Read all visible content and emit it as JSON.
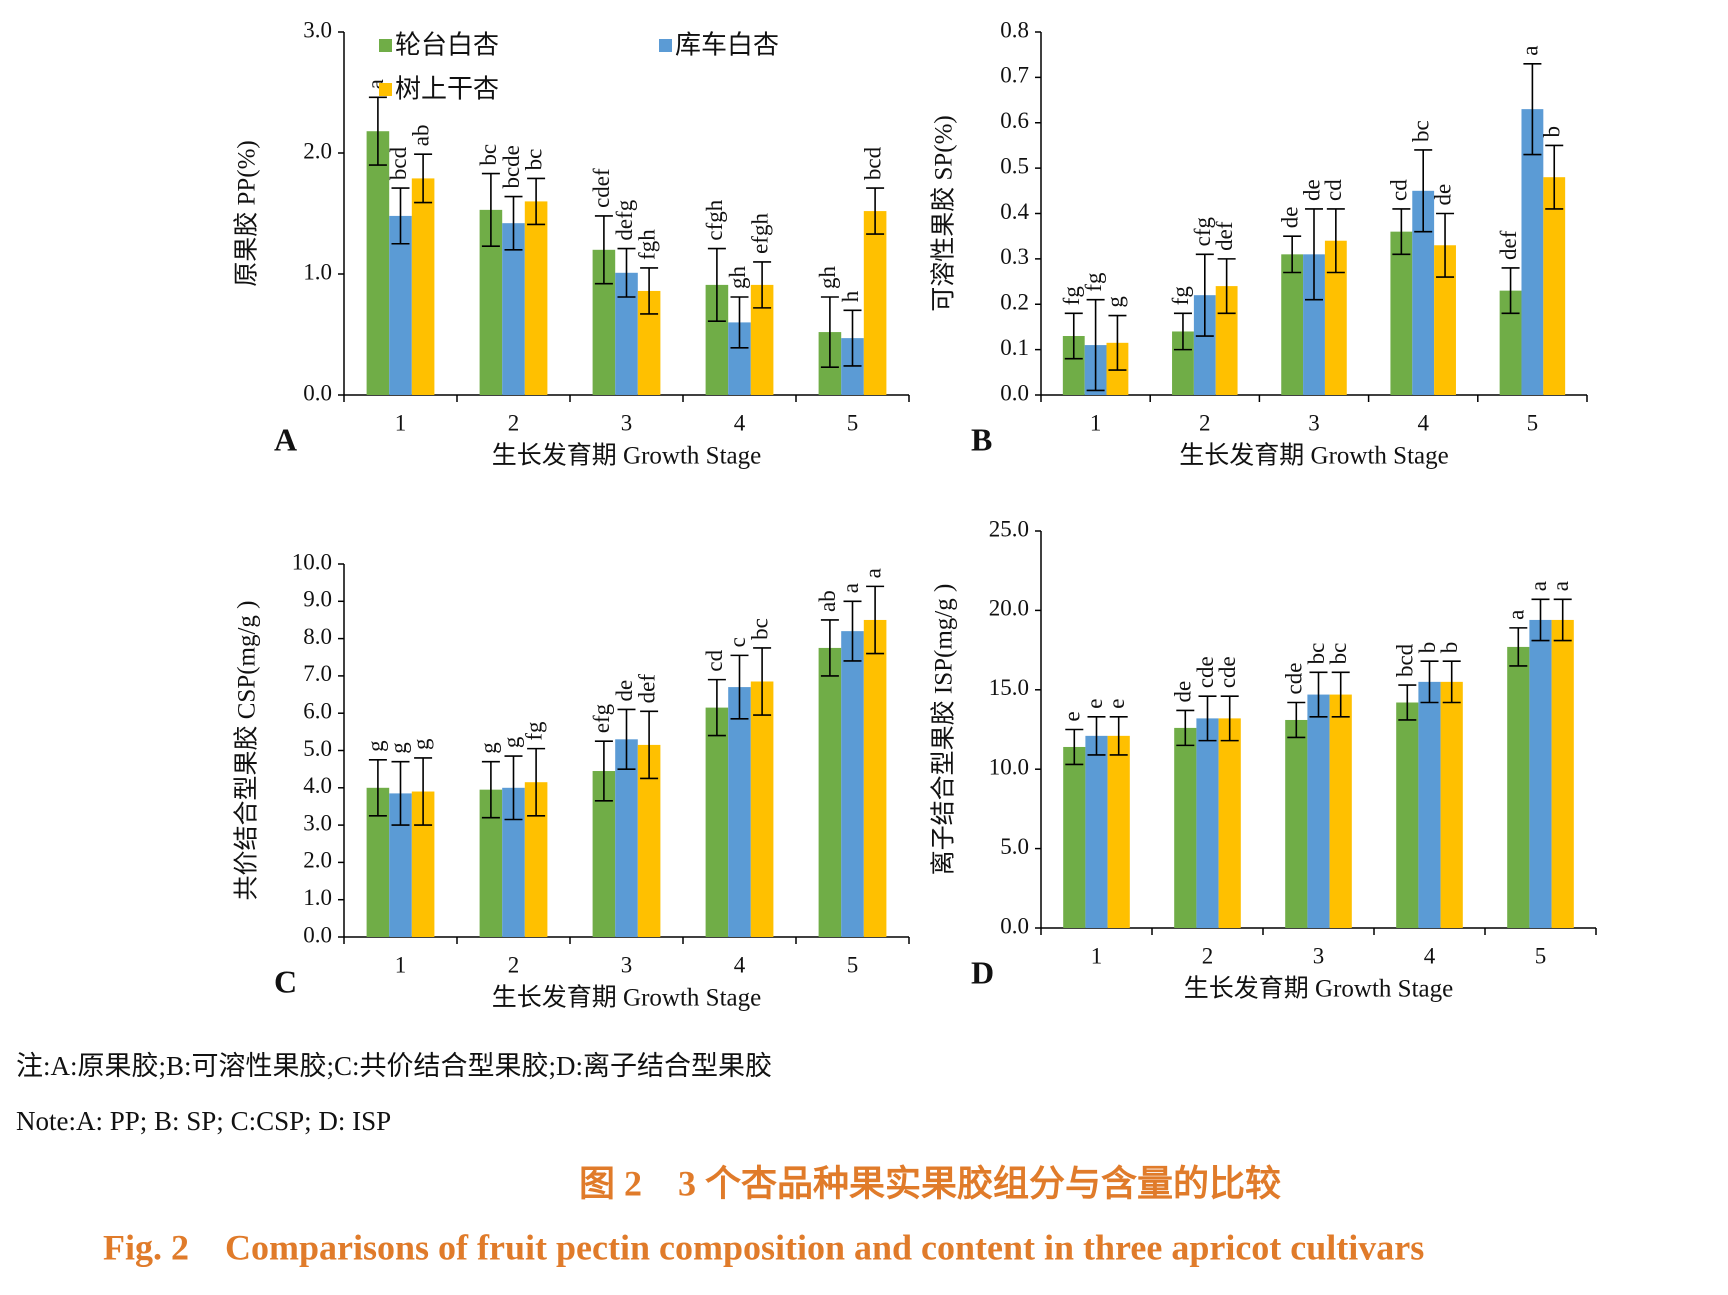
{
  "chart_data": [
    {
      "type": "bar",
      "panel": "A",
      "y_label": "原果胶 PP(%)",
      "x_label": "生长发育期 Growth Stage",
      "categories": [
        "1",
        "2",
        "3",
        "4",
        "5"
      ],
      "ylim": [
        0,
        3
      ],
      "yticks": [
        {
          "value": 0,
          "label": "0.0"
        },
        {
          "value": 1,
          "label": "1.0"
        },
        {
          "value": 2,
          "label": "2.0"
        },
        {
          "value": 3,
          "label": "3.0"
        }
      ],
      "series": [
        {
          "name": "轮台白杏",
          "color": "#70ad47",
          "values": [
            2.18,
            1.53,
            1.2,
            0.91,
            0.52
          ],
          "errors": [
            0.28,
            0.3,
            0.28,
            0.3,
            0.29
          ],
          "letters": [
            "a",
            "bc",
            "cdef",
            "cfgh",
            "gh"
          ]
        },
        {
          "name": "库车白杏",
          "color": "#5b9bd5",
          "values": [
            1.48,
            1.42,
            1.01,
            0.6,
            0.47
          ],
          "errors": [
            0.23,
            0.22,
            0.2,
            0.21,
            0.23
          ],
          "letters": [
            "bcd",
            "bcde",
            "defg",
            "gh",
            "h"
          ]
        },
        {
          "name": "树上干杏",
          "color": "#ffc000",
          "values": [
            1.79,
            1.6,
            0.86,
            0.91,
            1.52
          ],
          "errors": [
            0.2,
            0.19,
            0.19,
            0.19,
            0.19
          ],
          "letters": [
            "ab",
            "bc",
            "fgh",
            "efgh",
            "bcd"
          ]
        }
      ]
    },
    {
      "type": "bar",
      "panel": "B",
      "y_label": "可溶性果胶 SP(%)",
      "x_label": "生长发育期 Growth Stage",
      "categories": [
        "1",
        "2",
        "3",
        "4",
        "5"
      ],
      "ylim": [
        0,
        0.8
      ],
      "yticks": [
        {
          "value": 0,
          "label": "0.0"
        },
        0.1,
        0.2,
        0.3,
        0.4,
        0.5,
        0.6,
        0.7,
        0.8
      ],
      "series": [
        {
          "color": "#70ad47",
          "values": [
            0.13,
            0.14,
            0.31,
            0.36,
            0.23
          ],
          "errors": [
            0.05,
            0.04,
            0.04,
            0.05,
            0.05
          ],
          "letters": [
            "fg",
            "fg",
            "de",
            "cd",
            "def"
          ]
        },
        {
          "color": "#5b9bd5",
          "values": [
            0.11,
            0.22,
            0.31,
            0.45,
            0.63
          ],
          "errors": [
            0.1,
            0.09,
            0.1,
            0.09,
            0.1
          ],
          "letters": [
            "fg",
            "cfg",
            "de",
            "bc",
            "a"
          ]
        },
        {
          "color": "#ffc000",
          "values": [
            0.115,
            0.24,
            0.34,
            0.33,
            0.48
          ],
          "errors": [
            0.06,
            0.06,
            0.07,
            0.07,
            0.07
          ],
          "letters": [
            "g",
            "def",
            "cd",
            "de",
            "b"
          ]
        }
      ]
    },
    {
      "type": "bar",
      "panel": "C",
      "y_label": "共价结合型果胶 CSP(mg/g )",
      "x_label": "生长发育期 Growth Stage",
      "categories": [
        "1",
        "2",
        "3",
        "4",
        "5"
      ],
      "ylim": [
        0,
        10
      ],
      "yticks": [
        {
          "value": 0,
          "label": "0.0"
        },
        {
          "value": 1,
          "label": "1.0"
        },
        {
          "value": 2,
          "label": "2.0"
        },
        {
          "value": 3,
          "label": "3.0"
        },
        {
          "value": 4,
          "label": "4.0"
        },
        {
          "value": 5,
          "label": "5.0"
        },
        {
          "value": 6,
          "label": "6.0"
        },
        {
          "value": 7,
          "label": "7.0"
        },
        {
          "value": 8,
          "label": "8.0"
        },
        {
          "value": 9,
          "label": "9.0"
        },
        {
          "value": 10,
          "label": "10.0"
        }
      ],
      "series": [
        {
          "color": "#70ad47",
          "values": [
            4.0,
            3.95,
            4.45,
            6.15,
            7.75
          ],
          "errors": [
            0.75,
            0.75,
            0.8,
            0.75,
            0.75
          ],
          "letters": [
            "g",
            "g",
            "efg",
            "cd",
            "ab"
          ]
        },
        {
          "color": "#5b9bd5",
          "values": [
            3.85,
            4.0,
            5.3,
            6.7,
            8.2
          ],
          "errors": [
            0.85,
            0.85,
            0.8,
            0.85,
            0.8
          ],
          "letters": [
            "g",
            "g",
            "de",
            "c",
            "a"
          ]
        },
        {
          "color": "#ffc000",
          "values": [
            3.9,
            4.15,
            5.15,
            6.85,
            8.5
          ],
          "errors": [
            0.9,
            0.9,
            0.9,
            0.9,
            0.9
          ],
          "letters": [
            "g",
            "fg",
            "def",
            "bc",
            "a"
          ]
        }
      ]
    },
    {
      "type": "bar",
      "panel": "D",
      "y_label": "离子结合型果胶 ISP(mg/g )",
      "x_label": "生长发育期 Growth Stage",
      "categories": [
        "1",
        "2",
        "3",
        "4",
        "5"
      ],
      "ylim": [
        0,
        25
      ],
      "yticks": [
        {
          "value": 0,
          "label": "0.0"
        },
        {
          "value": 5,
          "label": "5.0"
        },
        {
          "value": 10,
          "label": "10.0"
        },
        {
          "value": 15,
          "label": "15.0"
        },
        {
          "value": 20,
          "label": "20.0"
        },
        {
          "value": 25,
          "label": "25.0"
        }
      ],
      "series": [
        {
          "color": "#70ad47",
          "values": [
            11.4,
            12.6,
            13.1,
            14.2,
            17.7
          ],
          "errors": [
            1.1,
            1.1,
            1.1,
            1.1,
            1.2
          ],
          "letters": [
            "e",
            "de",
            "cde",
            "bcd",
            "a"
          ]
        },
        {
          "color": "#5b9bd5",
          "values": [
            12.1,
            13.2,
            14.7,
            15.5,
            19.4
          ],
          "errors": [
            1.2,
            1.4,
            1.4,
            1.3,
            1.3
          ],
          "letters": [
            "e",
            "cde",
            "bc",
            "b",
            "a"
          ]
        },
        {
          "color": "#ffc000",
          "values": [
            12.1,
            13.2,
            14.7,
            15.5,
            19.4
          ],
          "errors": [
            1.2,
            1.4,
            1.4,
            1.3,
            1.3
          ],
          "letters": [
            "e",
            "cde",
            "bc",
            "b",
            "a"
          ]
        }
      ]
    }
  ],
  "notes": [
    "注:A:原果胶;B:可溶性果胶;C:共价结合型果胶;D:离子结合型果胶",
    "Note:A: PP; B: SP; C:CSP; D: ISP"
  ],
  "caption": {
    "zh": "图 2　3 个杏品种果实果胶组分与含量的比较",
    "en": "Fig. 2　Comparisons of fruit pectin composition and content in three apricot cultivars"
  }
}
